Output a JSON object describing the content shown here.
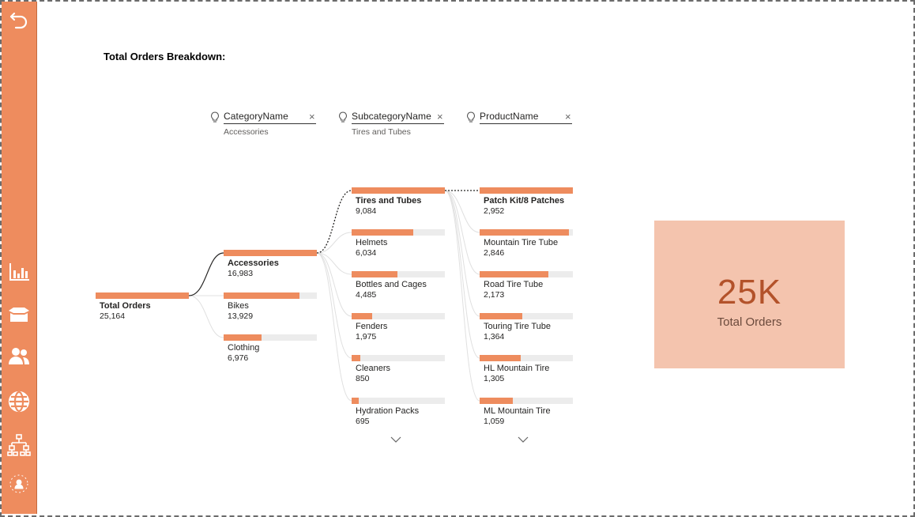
{
  "sidebar": {
    "items": [
      {
        "icon": "back-arrow-icon"
      },
      {
        "icon": "bar-chart-icon"
      },
      {
        "icon": "box-icon"
      },
      {
        "icon": "users-icon"
      },
      {
        "icon": "globe-icon"
      },
      {
        "icon": "hierarchy-icon"
      },
      {
        "icon": "network-people-icon"
      }
    ]
  },
  "page": {
    "title": "Total Orders Breakdown:"
  },
  "columns": [
    {
      "name": "CategoryName",
      "selection": "Accessories"
    },
    {
      "name": "SubcategoryName",
      "selection": "Tires and Tubes"
    },
    {
      "name": "ProductName",
      "selection": ""
    }
  ],
  "root": {
    "label": "Total Orders",
    "value": "25,164",
    "fraction": 1.0
  },
  "categories": [
    {
      "label": "Accessories",
      "value": "16,983",
      "fraction": 1.0
    },
    {
      "label": "Bikes",
      "value": "13,929",
      "fraction": 0.82
    },
    {
      "label": "Clothing",
      "value": "6,976",
      "fraction": 0.41
    }
  ],
  "subcategories": [
    {
      "label": "Tires and Tubes",
      "value": "9,084",
      "fraction": 1.0
    },
    {
      "label": "Helmets",
      "value": "6,034",
      "fraction": 0.66
    },
    {
      "label": "Bottles and Cages",
      "value": "4,485",
      "fraction": 0.49
    },
    {
      "label": "Fenders",
      "value": "1,975",
      "fraction": 0.22
    },
    {
      "label": "Cleaners",
      "value": "850",
      "fraction": 0.09
    },
    {
      "label": "Hydration Packs",
      "value": "695",
      "fraction": 0.08
    }
  ],
  "products": [
    {
      "label": "Patch Kit/8 Patches",
      "value": "2,952",
      "fraction": 1.0
    },
    {
      "label": "Mountain Tire Tube",
      "value": "2,846",
      "fraction": 0.96
    },
    {
      "label": "Road Tire Tube",
      "value": "2,173",
      "fraction": 0.74
    },
    {
      "label": "Touring Tire Tube",
      "value": "1,364",
      "fraction": 0.46
    },
    {
      "label": "HL Mountain Tire",
      "value": "1,305",
      "fraction": 0.44
    },
    {
      "label": "ML Mountain Tire",
      "value": "1,059",
      "fraction": 0.36
    }
  ],
  "kpi": {
    "value": "25K",
    "label": "Total Orders"
  },
  "colors": {
    "accent": "#EE8C5E",
    "card": "#F4C4AE",
    "kpi_text": "#B3522A",
    "track": "#ECECEC"
  }
}
